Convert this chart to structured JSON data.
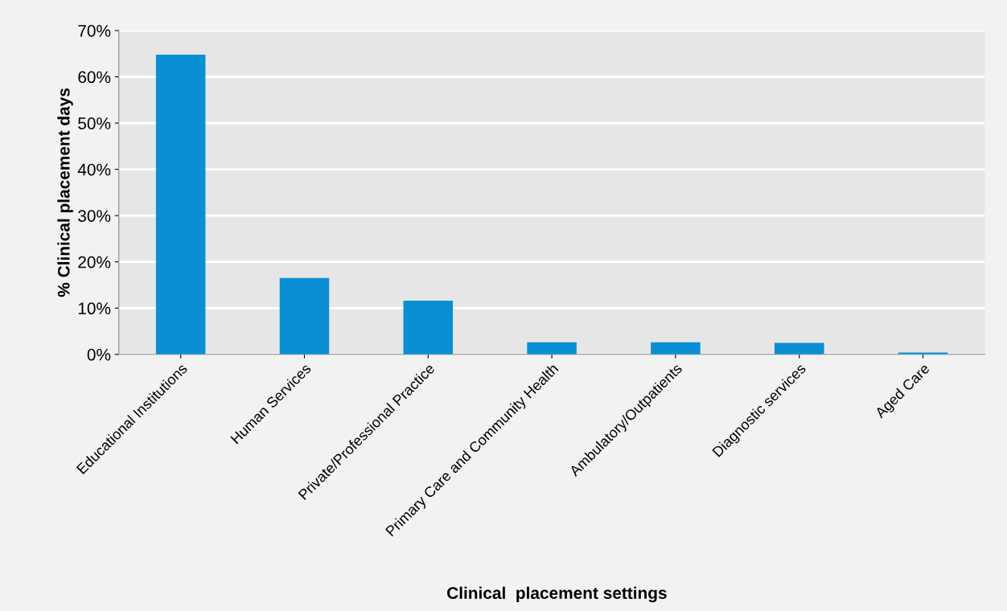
{
  "chart_data": {
    "type": "bar",
    "xlabel": "Clinical  placement settings",
    "ylabel": "% Clinical placement days",
    "categories": [
      "Educational Institutions",
      "Human Services",
      "Private/Professional Practice",
      "Primary Care and Community Health",
      "Ambulatory/Outpatients",
      "Diagnostic services",
      "Aged Care"
    ],
    "values": [
      64.8,
      16.5,
      11.6,
      2.6,
      2.6,
      2.5,
      0.4
    ],
    "color": "#0a8fd4",
    "ylim": [
      0,
      70
    ],
    "yticks": [
      {
        "value": 0,
        "label": "0%"
      },
      {
        "value": 10,
        "label": "10%"
      },
      {
        "value": 20,
        "label": "20%"
      },
      {
        "value": 30,
        "label": "30%"
      },
      {
        "value": 40,
        "label": "40%"
      },
      {
        "value": 50,
        "label": "50%"
      },
      {
        "value": 60,
        "label": "60%"
      },
      {
        "value": 70,
        "label": "70%"
      }
    ],
    "grid": "y"
  }
}
